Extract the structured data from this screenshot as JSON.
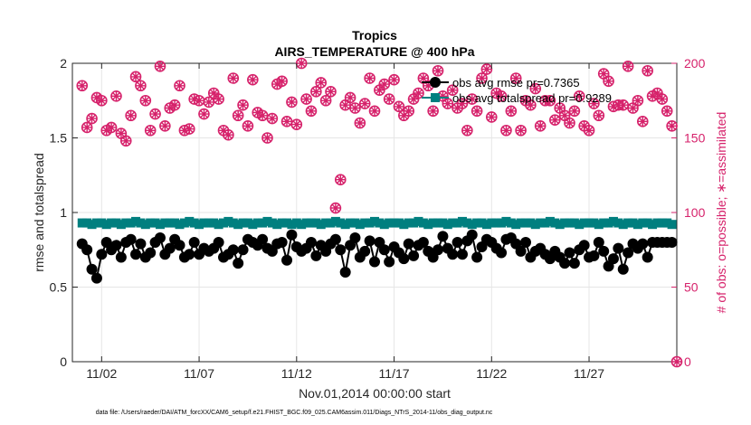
{
  "chart_data": {
    "type": "line",
    "title": "Tropics",
    "subtitle": "AIRS_TEMPERATURE @ 400 hPa",
    "xlabel": "Nov.01,2014 00:00:00 start",
    "ylabel_left": "rmse and totalspread",
    "ylabel_right": "# of obs: o=possible; ∗=assimilated",
    "footer": "data file: /Users/raeder/DAI/ATM_forcXX/CAM6_setup/f.e21.FHIST_BGC.f09_025.CAM6assim.011/Diags_NTrS_2014-11/obs_diag_output.nc",
    "xlim": [
      0.5,
      31.5
    ],
    "ylim_left": [
      0,
      2
    ],
    "ylim_right": [
      0,
      200
    ],
    "x_ticks": [
      2,
      7,
      12,
      17,
      22,
      27
    ],
    "x_tick_labels": [
      "11/02",
      "11/07",
      "11/12",
      "11/17",
      "11/22",
      "11/27"
    ],
    "y_left_ticks": [
      0,
      0.5,
      1,
      1.5,
      2
    ],
    "y_left_tick_labels": [
      "0",
      "0.5",
      "1",
      "1.5",
      "2"
    ],
    "y_right_ticks": [
      0,
      50,
      100,
      150,
      200
    ],
    "y_right_tick_labels": [
      "0",
      "50",
      "100",
      "150",
      "200"
    ],
    "colors": {
      "rmse": "#000000",
      "spread": "#007f7f",
      "obs": "#d6226b",
      "grid": "#e6e6e6",
      "axis": "#262626"
    },
    "series": [
      {
        "name": "obs avg rmse pr=0.7365",
        "legend_label": "obs avg rmse pr=0.7365",
        "axis": "left",
        "marker": "circle",
        "x": [
          1.0,
          1.25,
          1.5,
          1.75,
          2.0,
          2.25,
          2.5,
          2.75,
          3.0,
          3.25,
          3.5,
          3.75,
          4.0,
          4.25,
          4.5,
          4.75,
          5.0,
          5.25,
          5.5,
          5.75,
          6.0,
          6.25,
          6.5,
          6.75,
          7.0,
          7.25,
          7.5,
          7.75,
          8.0,
          8.25,
          8.5,
          8.75,
          9.0,
          9.25,
          9.5,
          9.75,
          10.0,
          10.25,
          10.5,
          10.75,
          11.0,
          11.25,
          11.5,
          11.75,
          12.0,
          12.25,
          12.5,
          12.75,
          13.0,
          13.25,
          13.5,
          13.75,
          14.0,
          14.25,
          14.5,
          14.75,
          15.0,
          15.25,
          15.5,
          15.75,
          16.0,
          16.25,
          16.5,
          16.75,
          17.0,
          17.25,
          17.5,
          17.75,
          18.0,
          18.25,
          18.5,
          18.75,
          19.0,
          19.25,
          19.5,
          19.75,
          20.0,
          20.25,
          20.5,
          20.75,
          21.0,
          21.25,
          21.5,
          21.75,
          22.0,
          22.25,
          22.5,
          22.75,
          23.0,
          23.25,
          23.5,
          23.75,
          24.0,
          24.25,
          24.5,
          24.75,
          25.0,
          25.25,
          25.5,
          25.75,
          26.0,
          26.25,
          26.5,
          26.75,
          27.0,
          27.25,
          27.5,
          27.75,
          28.0,
          28.25,
          28.5,
          28.75,
          29.0,
          29.25,
          29.5,
          29.75,
          30.0,
          30.25,
          30.5,
          30.75,
          31.0,
          31.25
        ],
        "values": [
          0.79,
          0.75,
          0.62,
          0.56,
          0.72,
          0.8,
          0.75,
          0.78,
          0.7,
          0.8,
          0.82,
          0.72,
          0.79,
          0.7,
          0.73,
          0.8,
          0.83,
          0.72,
          0.76,
          0.82,
          0.78,
          0.7,
          0.72,
          0.8,
          0.72,
          0.76,
          0.74,
          0.76,
          0.8,
          0.7,
          0.72,
          0.75,
          0.66,
          0.75,
          0.82,
          0.8,
          0.78,
          0.82,
          0.76,
          0.74,
          0.79,
          0.8,
          0.68,
          0.85,
          0.77,
          0.74,
          0.76,
          0.8,
          0.71,
          0.78,
          0.74,
          0.79,
          0.82,
          0.75,
          0.6,
          0.78,
          0.83,
          0.7,
          0.74,
          0.81,
          0.67,
          0.8,
          0.75,
          0.67,
          0.77,
          0.73,
          0.69,
          0.79,
          0.71,
          0.78,
          0.8,
          0.74,
          0.7,
          0.75,
          0.84,
          0.76,
          0.72,
          0.8,
          0.72,
          0.81,
          0.85,
          0.7,
          0.77,
          0.82,
          0.8,
          0.76,
          0.73,
          0.82,
          0.83,
          0.79,
          0.74,
          0.8,
          0.7,
          0.74,
          0.76,
          0.72,
          0.69,
          0.74,
          0.7,
          0.66,
          0.73,
          0.66,
          0.75,
          0.78,
          0.7,
          0.71,
          0.8,
          0.74,
          0.64,
          0.69,
          0.76,
          0.62,
          0.73,
          0.79,
          0.76,
          0.79,
          0.7,
          0.8,
          0.8,
          0.8,
          0.8,
          0.8
        ]
      },
      {
        "name": "obs avg totalspread pr=0.9289",
        "legend_label": "obs avg totalspread pr=0.9289",
        "axis": "left",
        "marker": "square",
        "x": [
          1.0,
          1.25,
          1.5,
          1.75,
          2.0,
          2.25,
          2.5,
          2.75,
          3.0,
          3.25,
          3.5,
          3.75,
          4.0,
          4.25,
          4.5,
          4.75,
          5.0,
          5.25,
          5.5,
          5.75,
          6.0,
          6.25,
          6.5,
          6.75,
          7.0,
          7.25,
          7.5,
          7.75,
          8.0,
          8.25,
          8.5,
          8.75,
          9.0,
          9.25,
          9.5,
          9.75,
          10.0,
          10.25,
          10.5,
          10.75,
          11.0,
          11.25,
          11.5,
          11.75,
          12.0,
          12.25,
          12.5,
          12.75,
          13.0,
          13.25,
          13.5,
          13.75,
          14.0,
          14.25,
          14.5,
          14.75,
          15.0,
          15.25,
          15.5,
          15.75,
          16.0,
          16.25,
          16.5,
          16.75,
          17.0,
          17.25,
          17.5,
          17.75,
          18.0,
          18.25,
          18.5,
          18.75,
          19.0,
          19.25,
          19.5,
          19.75,
          20.0,
          20.25,
          20.5,
          20.75,
          21.0,
          21.25,
          21.5,
          21.75,
          22.0,
          22.25,
          22.5,
          22.75,
          23.0,
          23.25,
          23.5,
          23.75,
          24.0,
          24.25,
          24.5,
          24.75,
          25.0,
          25.25,
          25.5,
          25.75,
          26.0,
          26.25,
          26.5,
          26.75,
          27.0,
          27.25,
          27.5,
          27.75,
          28.0,
          28.25,
          28.5,
          28.75,
          29.0,
          29.25,
          29.5,
          29.75,
          30.0,
          30.25,
          30.5,
          30.75,
          31.0,
          31.25
        ],
        "values": [
          0.93,
          0.93,
          0.92,
          0.93,
          0.93,
          0.92,
          0.93,
          0.93,
          0.92,
          0.93,
          0.93,
          0.94,
          0.93,
          0.92,
          0.93,
          0.93,
          0.92,
          0.93,
          0.93,
          0.93,
          0.92,
          0.93,
          0.94,
          0.93,
          0.92,
          0.93,
          0.93,
          0.93,
          0.92,
          0.93,
          0.94,
          0.93,
          0.92,
          0.93,
          0.93,
          0.92,
          0.93,
          0.93,
          0.94,
          0.93,
          0.92,
          0.93,
          0.93,
          0.92,
          0.93,
          0.92,
          0.93,
          0.93,
          0.93,
          0.92,
          0.93,
          0.93,
          0.94,
          0.93,
          0.92,
          0.93,
          0.93,
          0.92,
          0.93,
          0.93,
          0.94,
          0.93,
          0.92,
          0.93,
          0.93,
          0.93,
          0.92,
          0.93,
          0.93,
          0.94,
          0.93,
          0.92,
          0.93,
          0.93,
          0.93,
          0.92,
          0.93,
          0.93,
          0.94,
          0.93,
          0.92,
          0.93,
          0.93,
          0.92,
          0.93,
          0.93,
          0.93,
          0.94,
          0.93,
          0.92,
          0.93,
          0.93,
          0.93,
          0.92,
          0.93,
          0.93,
          0.94,
          0.93,
          0.92,
          0.93,
          0.93,
          0.93,
          0.92,
          0.93,
          0.93,
          0.93,
          0.92,
          0.93,
          0.93,
          0.94,
          0.93,
          0.92,
          0.93,
          0.93,
          0.92,
          0.93,
          0.93,
          0.92,
          0.93,
          0.93,
          0.93,
          0.92
        ]
      },
      {
        "name": "# of obs possible",
        "axis": "right",
        "marker": "open-circle",
        "x": [
          1.0,
          1.25,
          1.5,
          1.75,
          2.0,
          2.25,
          2.5,
          2.75,
          3.0,
          3.25,
          3.5,
          3.75,
          4.0,
          4.25,
          4.5,
          4.75,
          5.0,
          5.25,
          5.5,
          5.75,
          6.0,
          6.25,
          6.5,
          6.75,
          7.0,
          7.25,
          7.5,
          7.75,
          8.0,
          8.25,
          8.5,
          8.75,
          9.0,
          9.25,
          9.5,
          9.75,
          10.0,
          10.25,
          10.5,
          10.75,
          11.0,
          11.25,
          11.5,
          11.75,
          12.0,
          12.25,
          12.5,
          12.75,
          13.0,
          13.25,
          13.5,
          13.75,
          14.0,
          14.25,
          14.5,
          14.75,
          15.0,
          15.25,
          15.5,
          15.75,
          16.0,
          16.25,
          16.5,
          16.75,
          17.0,
          17.25,
          17.5,
          17.75,
          18.0,
          18.25,
          18.5,
          18.75,
          19.0,
          19.25,
          19.5,
          19.75,
          20.0,
          20.25,
          20.5,
          20.75,
          21.0,
          21.25,
          21.5,
          21.75,
          22.0,
          22.25,
          22.5,
          22.75,
          23.0,
          23.25,
          23.5,
          23.75,
          24.0,
          24.25,
          24.5,
          24.75,
          25.0,
          25.25,
          25.5,
          25.75,
          26.0,
          26.25,
          26.5,
          26.75,
          27.0,
          27.25,
          27.5,
          27.75,
          28.0,
          28.25,
          28.5,
          28.75,
          29.0,
          29.25,
          29.5,
          29.75,
          30.0,
          30.25,
          30.5,
          30.75,
          31.0,
          31.25
        ],
        "values": [
          185,
          157,
          163,
          177,
          175,
          155,
          157,
          178,
          153,
          148,
          165,
          191,
          185,
          175,
          155,
          166,
          198,
          158,
          170,
          172,
          185,
          155,
          156,
          176,
          175,
          166,
          174,
          180,
          176,
          155,
          152,
          190,
          165,
          172,
          158,
          189,
          167,
          165,
          150,
          163,
          186,
          188,
          161,
          174,
          159,
          200,
          176,
          168,
          181,
          187,
          175,
          181,
          103,
          122,
          172,
          177,
          170,
          160,
          173,
          190,
          168,
          182,
          186,
          176,
          189,
          171,
          165,
          168,
          176,
          180,
          190,
          185,
          168,
          195,
          178,
          173,
          182,
          170,
          173,
          155,
          176,
          168,
          190,
          196,
          164,
          180,
          178,
          155,
          168,
          190,
          155,
          175,
          172,
          183,
          158,
          175,
          175,
          162,
          170,
          165,
          160,
          168,
          178,
          158,
          155,
          173,
          165,
          193,
          188,
          171,
          172,
          172,
          198,
          170,
          175,
          161,
          195,
          178,
          180,
          176,
          168,
          158
        ]
      },
      {
        "name": "# of obs assimilated",
        "axis": "right",
        "marker": "asterisk",
        "x": [
          1.0,
          1.25,
          1.5,
          1.75,
          2.0,
          2.25,
          2.5,
          2.75,
          3.0,
          3.25,
          3.5,
          3.75,
          4.0,
          4.25,
          4.5,
          4.75,
          5.0,
          5.25,
          5.5,
          5.75,
          6.0,
          6.25,
          6.5,
          6.75,
          7.0,
          7.25,
          7.5,
          7.75,
          8.0,
          8.25,
          8.5,
          8.75,
          9.0,
          9.25,
          9.5,
          9.75,
          10.0,
          10.25,
          10.5,
          10.75,
          11.0,
          11.25,
          11.5,
          11.75,
          12.0,
          12.25,
          12.5,
          12.75,
          13.0,
          13.25,
          13.5,
          13.75,
          14.0,
          14.25,
          14.5,
          14.75,
          15.0,
          15.25,
          15.5,
          15.75,
          16.0,
          16.25,
          16.5,
          16.75,
          17.0,
          17.25,
          17.5,
          17.75,
          18.0,
          18.25,
          18.5,
          18.75,
          19.0,
          19.25,
          19.5,
          19.75,
          20.0,
          20.25,
          20.5,
          20.75,
          21.0,
          21.25,
          21.5,
          21.75,
          22.0,
          22.25,
          22.5,
          22.75,
          23.0,
          23.25,
          23.5,
          23.75,
          24.0,
          24.25,
          24.5,
          24.75,
          25.0,
          25.25,
          25.5,
          25.75,
          26.0,
          26.25,
          26.5,
          26.75,
          27.0,
          27.25,
          27.5,
          27.75,
          28.0,
          28.25,
          28.5,
          28.75,
          29.0,
          29.25,
          29.5,
          29.75,
          30.0,
          30.25,
          30.5,
          30.75,
          31.0,
          31.25
        ],
        "values": [
          185,
          157,
          163,
          177,
          175,
          155,
          157,
          178,
          153,
          148,
          165,
          191,
          185,
          175,
          155,
          166,
          198,
          158,
          170,
          172,
          185,
          155,
          156,
          176,
          175,
          166,
          174,
          180,
          176,
          155,
          152,
          190,
          165,
          172,
          158,
          189,
          167,
          165,
          150,
          163,
          186,
          188,
          161,
          174,
          159,
          200,
          176,
          168,
          181,
          187,
          175,
          181,
          103,
          122,
          172,
          177,
          170,
          160,
          173,
          190,
          168,
          182,
          186,
          176,
          189,
          171,
          165,
          168,
          176,
          180,
          190,
          185,
          168,
          195,
          178,
          173,
          182,
          170,
          173,
          155,
          176,
          168,
          190,
          196,
          164,
          180,
          178,
          155,
          168,
          190,
          155,
          175,
          172,
          183,
          158,
          175,
          175,
          162,
          170,
          165,
          160,
          168,
          178,
          158,
          155,
          173,
          165,
          193,
          188,
          171,
          172,
          172,
          198,
          170,
          175,
          161,
          195,
          178,
          180,
          176,
          168,
          158
        ]
      }
    ],
    "extra_marks": [
      {
        "axis": "right",
        "marker": "open-circle",
        "x": 31.5,
        "value": 0
      }
    ]
  }
}
